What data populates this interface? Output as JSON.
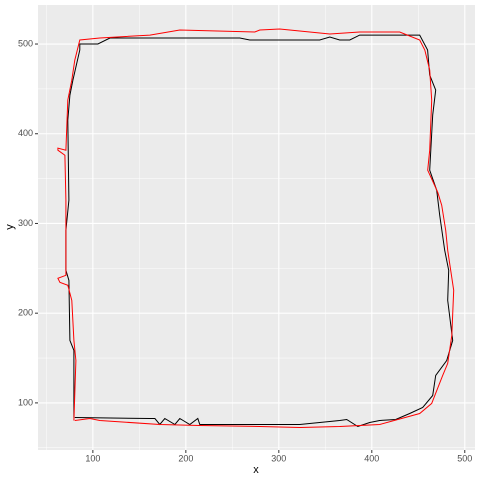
{
  "chart_data": {
    "type": "path",
    "xlabel": "x",
    "ylabel": "y",
    "xlim": [
      41,
      511
    ],
    "ylim": [
      47.5,
      543.5
    ],
    "xticks": [
      100,
      200,
      300,
      400,
      500
    ],
    "yticks": [
      100,
      200,
      300,
      400,
      500
    ],
    "grid": true,
    "series": [
      {
        "color": "#000000",
        "x": [
          79.6,
          79.6,
          75.3,
          74.2,
          71,
          71,
          74.2,
          73.1,
          75.3,
          78.5,
          86,
          86,
          105.4,
          118.3,
          258,
          268.8,
          344,
          354.8,
          365.5,
          376.3,
          387,
          451.5,
          460,
          462.3,
          468.7,
          465.5,
          462.3,
          469.8,
          473,
          478.4,
          482.7,
          481.6,
          487,
          480.6,
          468.7,
          465.5,
          454.8,
          440.8,
          425.7,
          408.5,
          397.8,
          384.9,
          373,
          365.5,
          322.5,
          215,
          212.9,
          204.3,
          193.5,
          188.2,
          177.4,
          172,
          166.7,
          161.3,
          80.6
        ],
        "y": [
          83.7,
          158.5,
          169.7,
          236.7,
          247.8,
          292.4,
          325.9,
          415.2,
          443.1,
          459.8,
          493.3,
          500,
          500,
          506.7,
          506.7,
          504.5,
          504.5,
          507.8,
          504.5,
          504.5,
          510,
          510,
          493.3,
          465.4,
          448.7,
          420.8,
          359.4,
          337,
          309.2,
          270.1,
          247.8,
          214.3,
          169.7,
          147.3,
          130.6,
          108.3,
          94.9,
          88.2,
          81.5,
          80.4,
          78.2,
          73.7,
          81.5,
          80.4,
          75.9,
          75.9,
          82.6,
          75.9,
          82.6,
          75.9,
          82.6,
          75.9,
          82.6,
          82.6,
          83.7
        ]
      },
      {
        "color": "#ff0000",
        "x": [
          80.6,
          96.8,
          107.5,
          172,
          215,
          279.5,
          322.5,
          365.5,
          408.5,
          451.5,
          464.4,
          476.3,
          481.6,
          486,
          488.1,
          484.9,
          481.6,
          479.5,
          475.2,
          470.9,
          460.1,
          462.3,
          464.4,
          462.3,
          457,
          451.5,
          430,
          387,
          354.8,
          301,
          279.5,
          274.2,
          193.5,
          161.3,
          107.5,
          86,
          80.6,
          77.4,
          73.1,
          71,
          62.4,
          62.4,
          69.9,
          71,
          71,
          62.4,
          64.5,
          73.1,
          77.4,
          79.6,
          81.8,
          79.6
        ],
        "y": [
          80.4,
          82.6,
          80.4,
          75.9,
          74.8,
          73.7,
          72.6,
          73.7,
          75.9,
          88.2,
          99.4,
          130.6,
          144,
          175.2,
          225.5,
          247.8,
          270.1,
          292.4,
          320.3,
          334.8,
          359.4,
          381.7,
          437.5,
          471,
          493.3,
          504.5,
          513.4,
          513.4,
          511.2,
          516.7,
          515.6,
          513.4,
          515.6,
          510,
          506.7,
          504.5,
          482.1,
          459.8,
          437.5,
          381.7,
          383.9,
          381.7,
          376.1,
          325.9,
          242.2,
          238.9,
          234.4,
          231.1,
          214.3,
          169.7,
          147.3,
          80.4
        ]
      }
    ]
  }
}
